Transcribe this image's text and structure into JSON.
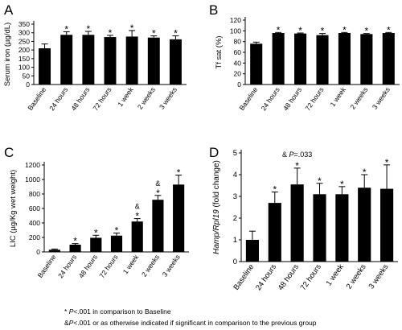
{
  "chart_data": [
    {
      "panel": "A",
      "type": "bar",
      "ylabel": "Serum iron (µg/dL)",
      "ylabel_italic": "",
      "ylabel_rest": "",
      "ylim": [
        0,
        350
      ],
      "yticks": [
        0,
        50,
        100,
        150,
        200,
        250,
        300,
        350
      ],
      "categories": [
        "Baseline",
        "24 hours",
        "48 hours",
        "72 hours",
        "1 week",
        "2 weeks",
        "3 weeks"
      ],
      "values": [
        210,
        288,
        288,
        275,
        278,
        272,
        262
      ],
      "errors": [
        25,
        18,
        20,
        10,
        35,
        10,
        20
      ],
      "marks": [
        "",
        "*",
        "*",
        "*",
        "*",
        "*",
        "*"
      ],
      "annotations": []
    },
    {
      "panel": "B",
      "type": "bar",
      "ylabel": "Tf sat (%)",
      "ylabel_italic": "",
      "ylabel_rest": "",
      "ylim": [
        0,
        120
      ],
      "yticks": [
        0,
        20,
        40,
        60,
        80,
        100,
        120
      ],
      "categories": [
        "Baseline",
        "24 hours",
        "48 hours",
        "72 hours",
        "1 week",
        "2 weeks",
        "3 weeks"
      ],
      "values": [
        76,
        96,
        95,
        92,
        96,
        94,
        96
      ],
      "errors": [
        3,
        1,
        1,
        3,
        1,
        1,
        1
      ],
      "marks": [
        "",
        "*",
        "*",
        "*",
        "*",
        "*",
        "*"
      ],
      "annotations": []
    },
    {
      "panel": "C",
      "type": "bar",
      "ylabel": "LIC (µg/Kg wet weight)",
      "ylabel_italic": "",
      "ylabel_rest": "",
      "ylim": [
        0,
        1200
      ],
      "yticks": [
        0,
        200,
        400,
        600,
        800,
        1000,
        1200
      ],
      "categories": [
        "Baseline",
        "24 hours",
        "48 hours",
        "72 hours",
        "1 week",
        "2 weeks",
        "3 weeks"
      ],
      "values": [
        30,
        100,
        195,
        225,
        420,
        720,
        930
      ],
      "errors": [
        10,
        15,
        35,
        35,
        40,
        60,
        130
      ],
      "marks": [
        "",
        "*",
        "*",
        "*",
        "&\n*",
        "&\n*",
        "*"
      ],
      "annotations": []
    },
    {
      "panel": "D",
      "type": "bar",
      "ylabel": "",
      "ylabel_italic": "Hamp/Rpl19",
      "ylabel_rest": " (fold change)",
      "ylim": [
        0,
        5
      ],
      "yticks": [
        0,
        1,
        2,
        3,
        4,
        5
      ],
      "categories": [
        "Baseline",
        "24 hours",
        "48 hours",
        "72 hours",
        "1 week",
        "2 weeks",
        "3 weeks"
      ],
      "values": [
        1.0,
        2.7,
        3.55,
        3.1,
        3.1,
        3.4,
        3.35
      ],
      "errors": [
        0.4,
        0.5,
        0.75,
        0.5,
        0.35,
        0.6,
        1.1
      ],
      "marks": [
        "",
        "*",
        "*",
        "*",
        "*",
        "*",
        "*"
      ],
      "annotations": [
        {
          "bar": 2,
          "text_before": "& ",
          "text_italic": "P",
          "text_after": "=.033"
        }
      ]
    }
  ],
  "footnotes": {
    "line1_symbol": "*",
    "line1_italic": "P",
    "line1_text": "<.001 in comparison to Baseline",
    "line2_symbol": "&",
    "line2_italic": "P",
    "line2_text": "<.001 or as otherwise indicated if significant in comparison to the previous group"
  }
}
